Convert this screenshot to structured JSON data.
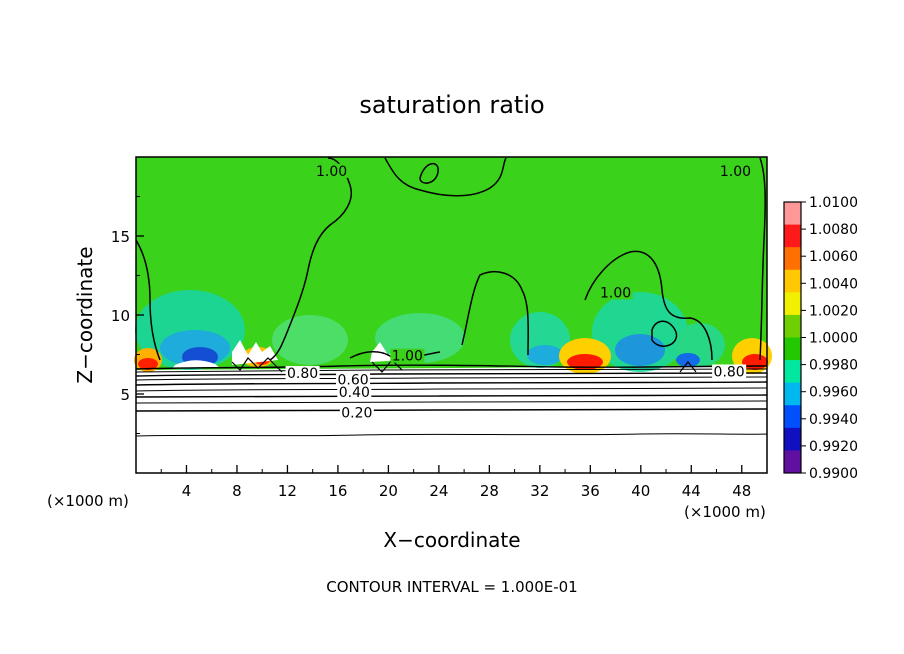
{
  "chart_data": {
    "type": "heatmap",
    "title": "saturation ratio",
    "xlabel": "X−coordinate",
    "ylabel": "Z−coordinate",
    "x_unit_left": "(×1000 m)",
    "x_unit_right": "(×1000 m)",
    "footer": "CONTOUR INTERVAL = 1.000E-01",
    "xlim": [
      0,
      50
    ],
    "ylim": [
      0,
      20
    ],
    "x_ticks": [
      4,
      8,
      12,
      16,
      20,
      24,
      28,
      32,
      36,
      40,
      44,
      48
    ],
    "y_ticks": [
      5,
      10,
      15
    ],
    "colorbar": {
      "min": 0.99,
      "max": 1.01,
      "labels": [
        "1.0100",
        "1.0080",
        "1.0060",
        "1.0040",
        "1.0020",
        "1.0000",
        "0.9980",
        "0.9960",
        "0.9940",
        "0.9920",
        "0.9900"
      ],
      "colors": [
        "#ff9898",
        "#ff1a1a",
        "#ff7000",
        "#ffc800",
        "#f0f000",
        "#6ed000",
        "#22c800",
        "#00e8a0",
        "#00b8f0",
        "#0050ff",
        "#1010c0",
        "#6010a0"
      ]
    },
    "contour_labels": [
      {
        "text": "1.00",
        "x": 15.5,
        "y": 19.0
      },
      {
        "text": "1.00",
        "x": 47.5,
        "y": 19.0
      },
      {
        "text": "1.00",
        "x": 38.0,
        "y": 11.3
      },
      {
        "text": "1.00",
        "x": 21.5,
        "y": 7.3
      },
      {
        "text": "0.80",
        "x": 13.2,
        "y": 6.2
      },
      {
        "text": "0.80",
        "x": 47.0,
        "y": 6.3
      },
      {
        "text": "0.60",
        "x": 17.2,
        "y": 5.8
      },
      {
        "text": "0.40",
        "x": 17.3,
        "y": 5.0
      },
      {
        "text": "0.20",
        "x": 17.5,
        "y": 3.7
      }
    ]
  }
}
